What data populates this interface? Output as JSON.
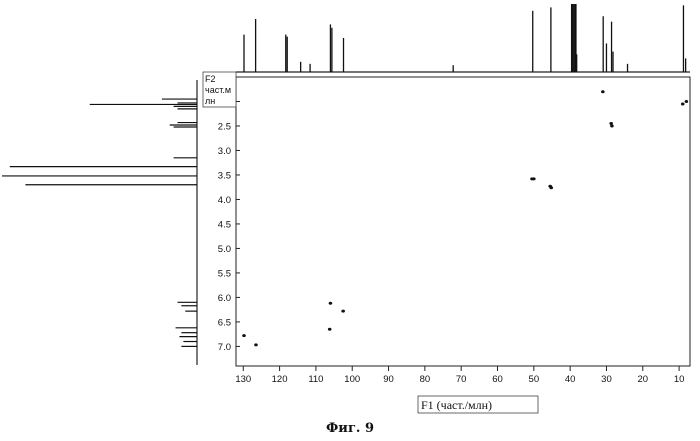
{
  "figure": {
    "caption": "Фиг. 9"
  },
  "chart_data": {
    "type": "scatter",
    "title": "",
    "xlabel": "F1 (част./млн)",
    "ylabel_lines": [
      "F2",
      "част.м",
      "лн"
    ],
    "xlim": [
      132,
      7
    ],
    "ylim": [
      1.5,
      7.4
    ],
    "x_ticks": [
      130,
      120,
      110,
      100,
      90,
      80,
      70,
      60,
      50,
      40,
      30,
      20,
      10
    ],
    "y_ticks": [
      "2.0",
      "2.5",
      "3.0",
      "3.5",
      "4.0",
      "4.5",
      "5.0",
      "5.5",
      "6.0",
      "6.5",
      "7.0"
    ],
    "x_axis_reversed": true,
    "y_axis_reversed": true,
    "grid": false,
    "cross_peaks": [
      {
        "x": 31.0,
        "y": 1.8
      },
      {
        "x": 9.0,
        "y": 2.05
      },
      {
        "x": 8.0,
        "y": 2.0
      },
      {
        "x": 28.7,
        "y": 2.45
      },
      {
        "x": 28.5,
        "y": 2.5
      },
      {
        "x": 50.5,
        "y": 3.58
      },
      {
        "x": 50.0,
        "y": 3.58
      },
      {
        "x": 45.5,
        "y": 3.73
      },
      {
        "x": 45.2,
        "y": 3.76
      },
      {
        "x": 106.0,
        "y": 6.12
      },
      {
        "x": 102.5,
        "y": 6.28
      },
      {
        "x": 106.2,
        "y": 6.65
      },
      {
        "x": 129.8,
        "y": 6.78
      },
      {
        "x": 126.5,
        "y": 6.97
      }
    ],
    "f1_projection_peaks": [
      {
        "x": 129.8,
        "h": 0.55
      },
      {
        "x": 126.6,
        "h": 0.78
      },
      {
        "x": 118.3,
        "h": 0.55
      },
      {
        "x": 117.9,
        "h": 0.52
      },
      {
        "x": 114.2,
        "h": 0.15
      },
      {
        "x": 111.6,
        "h": 0.12
      },
      {
        "x": 106.0,
        "h": 0.7
      },
      {
        "x": 105.6,
        "h": 0.65
      },
      {
        "x": 102.4,
        "h": 0.5
      },
      {
        "x": 72.2,
        "h": 0.1
      },
      {
        "x": 50.3,
        "h": 0.9
      },
      {
        "x": 45.3,
        "h": 0.95
      },
      {
        "x": 38.2,
        "h": 0.26
      },
      {
        "x": 39.6,
        "h": 1.0
      },
      {
        "x": 39.3,
        "h": 1.0
      },
      {
        "x": 39.0,
        "h": 1.0
      },
      {
        "x": 38.7,
        "h": 1.0
      },
      {
        "x": 38.4,
        "h": 1.0
      },
      {
        "x": 30.9,
        "h": 0.82
      },
      {
        "x": 30.0,
        "h": 0.42
      },
      {
        "x": 28.6,
        "h": 0.74
      },
      {
        "x": 28.2,
        "h": 0.3
      },
      {
        "x": 24.2,
        "h": 0.12
      },
      {
        "x": 8.8,
        "h": 0.98
      },
      {
        "x": 8.2,
        "h": 0.2
      }
    ],
    "f2_projection_peaks": [
      {
        "y": 1.95,
        "h": 0.18
      },
      {
        "y": 2.03,
        "h": 0.1
      },
      {
        "y": 2.06,
        "h": 0.55
      },
      {
        "y": 2.1,
        "h": 0.12
      },
      {
        "y": 2.15,
        "h": 0.1
      },
      {
        "y": 2.43,
        "h": 0.1
      },
      {
        "y": 2.48,
        "h": 0.14
      },
      {
        "y": 2.52,
        "h": 0.12
      },
      {
        "y": 3.15,
        "h": 0.12
      },
      {
        "y": 3.33,
        "h": 0.96
      },
      {
        "y": 3.52,
        "h": 1.0
      },
      {
        "y": 3.7,
        "h": 0.88
      },
      {
        "y": 6.1,
        "h": 0.1
      },
      {
        "y": 6.17,
        "h": 0.08
      },
      {
        "y": 6.28,
        "h": 0.06
      },
      {
        "y": 6.62,
        "h": 0.11
      },
      {
        "y": 6.72,
        "h": 0.08
      },
      {
        "y": 6.8,
        "h": 0.09
      },
      {
        "y": 6.9,
        "h": 0.07
      },
      {
        "y": 7.0,
        "h": 0.08
      }
    ]
  }
}
